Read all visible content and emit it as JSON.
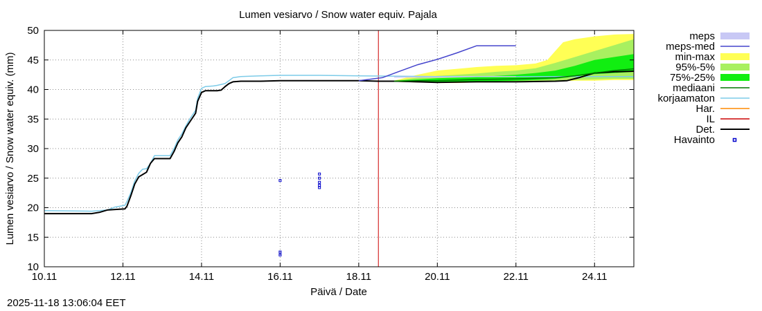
{
  "colors": {
    "meps": "#c8c8f5",
    "meps_med": "#4444cc",
    "min_max": "#ffff55",
    "p95_5": "#a8f060",
    "p75_25": "#11ee11",
    "mediaani": "#007700",
    "korjaamaton": "#7ccbe8",
    "har": "#ff8800",
    "il": "#cc0000",
    "det": "#000000",
    "havainto": "#0000cc"
  },
  "chart_data": {
    "type": "line",
    "title": "Lumen vesiarvo / Snow water equiv.  Pajala",
    "xlabel": "Päivä / Date",
    "ylabel": "Lumen vesiarvo / Snow water equiv. (mm)",
    "footer": "2025-11-18 13:06:04 EET",
    "xlim": [
      10.0,
      25.0
    ],
    "ylim": [
      10,
      50
    ],
    "xticks": [
      {
        "x": 10,
        "label": "10.11"
      },
      {
        "x": 12,
        "label": "12.11"
      },
      {
        "x": 14,
        "label": "14.11"
      },
      {
        "x": 16,
        "label": "16.11"
      },
      {
        "x": 18,
        "label": "18.11"
      },
      {
        "x": 20,
        "label": "20.11"
      },
      {
        "x": 22,
        "label": "22.11"
      },
      {
        "x": 24,
        "label": "24.11"
      }
    ],
    "yticks": [
      10,
      15,
      20,
      25,
      30,
      35,
      40,
      45,
      50
    ],
    "grid": true,
    "vline_x": 18.5,
    "legend": [
      {
        "label": "meps",
        "key": "meps",
        "style": "box"
      },
      {
        "label": "meps-med",
        "key": "meps_med",
        "style": "line"
      },
      {
        "label": "min-max",
        "key": "min_max",
        "style": "box"
      },
      {
        "label": "95%-5%",
        "key": "p95_5",
        "style": "box"
      },
      {
        "label": "75%-25%",
        "key": "p75_25",
        "style": "box"
      },
      {
        "label": "mediaani",
        "key": "mediaani",
        "style": "line"
      },
      {
        "label": "korjaamaton",
        "key": "korjaamaton",
        "style": "line"
      },
      {
        "label": "Har.",
        "key": "har",
        "style": "line"
      },
      {
        "label": "IL",
        "key": "il",
        "style": "line"
      },
      {
        "label": "Det.",
        "key": "det",
        "style": "thickline"
      },
      {
        "label": "Havainto",
        "key": "havainto",
        "style": "point"
      }
    ],
    "bands": {
      "min_max": {
        "x": [
          18.9,
          19.5,
          20.0,
          20.5,
          21.0,
          21.5,
          22.0,
          22.5,
          22.8,
          23.0,
          23.2,
          23.5,
          24.0,
          24.5,
          25.0
        ],
        "low": [
          41.3,
          41.2,
          41.1,
          41.1,
          41.2,
          41.2,
          41.3,
          41.3,
          41.3,
          41.4,
          41.4,
          41.5,
          41.5,
          41.6,
          41.6
        ],
        "high": [
          41.5,
          42.5,
          43.2,
          43.5,
          43.8,
          44.0,
          44.1,
          44.4,
          45.0,
          46.5,
          48.0,
          48.5,
          49.0,
          49.3,
          49.4
        ]
      },
      "p95_5": {
        "x": [
          18.9,
          19.5,
          20.0,
          20.5,
          21.0,
          21.5,
          22.0,
          22.5,
          23.0,
          23.5,
          24.0,
          24.5,
          25.0
        ],
        "low": [
          41.3,
          41.2,
          41.2,
          41.2,
          41.3,
          41.3,
          41.4,
          41.4,
          41.5,
          41.6,
          41.7,
          41.8,
          41.8
        ],
        "high": [
          41.5,
          42.0,
          42.3,
          42.5,
          42.7,
          43.0,
          43.2,
          43.6,
          44.5,
          45.5,
          46.5,
          47.5,
          48.5
        ]
      },
      "p75_25": {
        "x": [
          18.9,
          19.5,
          20.0,
          20.5,
          21.0,
          21.5,
          22.0,
          22.5,
          23.0,
          23.5,
          24.0,
          24.5,
          25.0
        ],
        "low": [
          41.3,
          41.3,
          41.3,
          41.3,
          41.4,
          41.4,
          41.5,
          41.6,
          41.8,
          42.2,
          42.6,
          42.8,
          43.0
        ],
        "high": [
          41.5,
          41.7,
          41.9,
          42.0,
          42.1,
          42.3,
          42.5,
          42.8,
          43.2,
          44.0,
          45.0,
          45.5,
          46.0
        ]
      }
    },
    "series": [
      {
        "name": "korjaamaton",
        "key": "korjaamaton",
        "x": [
          10.0,
          11.2,
          11.6,
          11.8,
          12.05,
          12.1,
          12.2,
          12.3,
          12.4,
          12.5,
          12.6,
          12.7,
          12.8,
          13.2,
          13.3,
          13.4,
          13.5,
          13.6,
          13.7,
          13.8,
          13.85,
          13.9,
          14.0,
          14.1,
          14.3,
          14.4,
          14.6,
          14.7,
          14.8,
          15.0,
          15.5,
          16.0,
          17.0,
          18.0,
          20.0,
          22.0,
          25.0
        ],
        "y": [
          19.5,
          19.4,
          19.6,
          20.1,
          20.4,
          21.0,
          22.5,
          24.5,
          25.8,
          26.5,
          26.6,
          27.5,
          28.8,
          28.8,
          30.0,
          31.5,
          32.5,
          33.8,
          35.0,
          36.0,
          36.5,
          38.5,
          40.2,
          40.5,
          40.6,
          40.7,
          41.0,
          41.5,
          42.0,
          42.2,
          42.3,
          42.4,
          42.4,
          42.3,
          42.2,
          42.2,
          42.2
        ]
      },
      {
        "name": "Det.",
        "key": "det",
        "x": [
          10.0,
          11.2,
          11.4,
          11.6,
          11.8,
          12.05,
          12.1,
          12.2,
          12.3,
          12.4,
          12.5,
          12.6,
          12.7,
          12.8,
          13.2,
          13.3,
          13.4,
          13.5,
          13.6,
          13.7,
          13.8,
          13.85,
          13.9,
          14.0,
          14.1,
          14.3,
          14.4,
          14.5,
          14.6,
          14.7,
          14.8,
          15.0,
          15.5,
          16.0,
          17.0,
          18.0,
          18.5,
          19.0,
          20.0,
          21.0,
          22.0,
          23.0,
          23.3,
          23.6,
          24.0,
          24.5,
          25.0
        ],
        "y": [
          19.0,
          19.0,
          19.2,
          19.6,
          19.7,
          19.8,
          20.2,
          22.0,
          24.0,
          25.2,
          25.6,
          26.0,
          27.5,
          28.3,
          28.3,
          29.5,
          31.0,
          32.0,
          33.5,
          34.5,
          35.5,
          36.0,
          38.0,
          39.5,
          39.8,
          39.8,
          39.8,
          39.9,
          40.5,
          41.0,
          41.3,
          41.4,
          41.4,
          41.5,
          41.5,
          41.5,
          41.4,
          41.4,
          41.2,
          41.3,
          41.3,
          41.4,
          41.5,
          42.0,
          42.8,
          43.0,
          43.1
        ]
      },
      {
        "name": "mediaani",
        "key": "mediaani",
        "x": [
          18.9,
          19.5,
          20.0,
          21.0,
          22.0,
          22.5,
          23.0,
          23.5,
          24.0,
          24.5,
          25.0
        ],
        "y": [
          41.4,
          41.5,
          41.5,
          41.7,
          41.8,
          41.9,
          42.0,
          42.3,
          42.8,
          43.2,
          43.5
        ]
      },
      {
        "name": "meps-med",
        "key": "meps_med",
        "x": [
          18.0,
          18.6,
          19.0,
          19.5,
          20.0,
          20.5,
          21.0,
          22.0
        ],
        "y": [
          41.5,
          42.0,
          43.0,
          44.2,
          45.1,
          46.2,
          47.4,
          47.4
        ]
      },
      {
        "name": "meps",
        "key": "meps",
        "x": [
          18.9,
          20.0,
          21.0,
          22.0
        ],
        "y": [
          42.1,
          42.1,
          42.2,
          42.2
        ]
      }
    ],
    "observations": [
      {
        "x": 16.0,
        "y": 24.6
      },
      {
        "x": 16.0,
        "y": 12.5
      },
      {
        "x": 16.0,
        "y": 12.0
      },
      {
        "x": 17.0,
        "y": 25.7
      },
      {
        "x": 17.0,
        "y": 25.0
      },
      {
        "x": 17.0,
        "y": 24.3
      },
      {
        "x": 17.0,
        "y": 23.8
      },
      {
        "x": 17.0,
        "y": 23.4
      }
    ]
  }
}
